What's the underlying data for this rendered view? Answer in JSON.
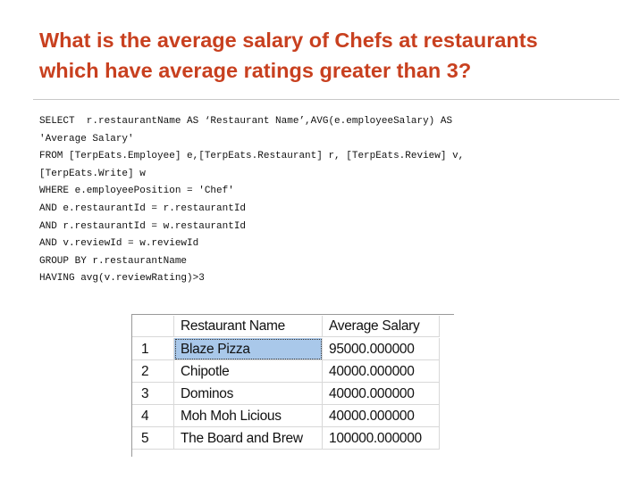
{
  "title": {
    "lines": [
      "What is the average salary of Chefs at restaurants",
      "which have average ratings greater than 3?"
    ]
  },
  "code": {
    "lines": [
      "SELECT  r.restaurantName AS ‘Restaurant Name’,AVG(e.employeeSalary) AS",
      "'Average Salary'",
      "FROM [TerpEats.Employee] e,[TerpEats.Restaurant] r, [TerpEats.Review] v,",
      "[TerpEats.Write] w",
      "WHERE e.employeePosition = 'Chef'",
      "AND e.restaurantId = r.restaurantId",
      "AND r.restaurantId = w.restaurantId",
      "AND v.reviewId = w.reviewId",
      "GROUP BY r.restaurantName",
      "HAVING avg(v.reviewRating)>3"
    ]
  },
  "table": {
    "columns": [
      "Restaurant Name",
      "Average Salary"
    ],
    "rows": [
      [
        "1",
        "Blaze Pizza",
        "95000.000000"
      ],
      [
        "2",
        "Chipotle",
        "40000.000000"
      ],
      [
        "3",
        "Dominos",
        "40000.000000"
      ],
      [
        "4",
        "Moh Moh Licious",
        "40000.000000"
      ],
      [
        "5",
        "The Board and Brew",
        "100000.000000"
      ]
    ]
  }
}
